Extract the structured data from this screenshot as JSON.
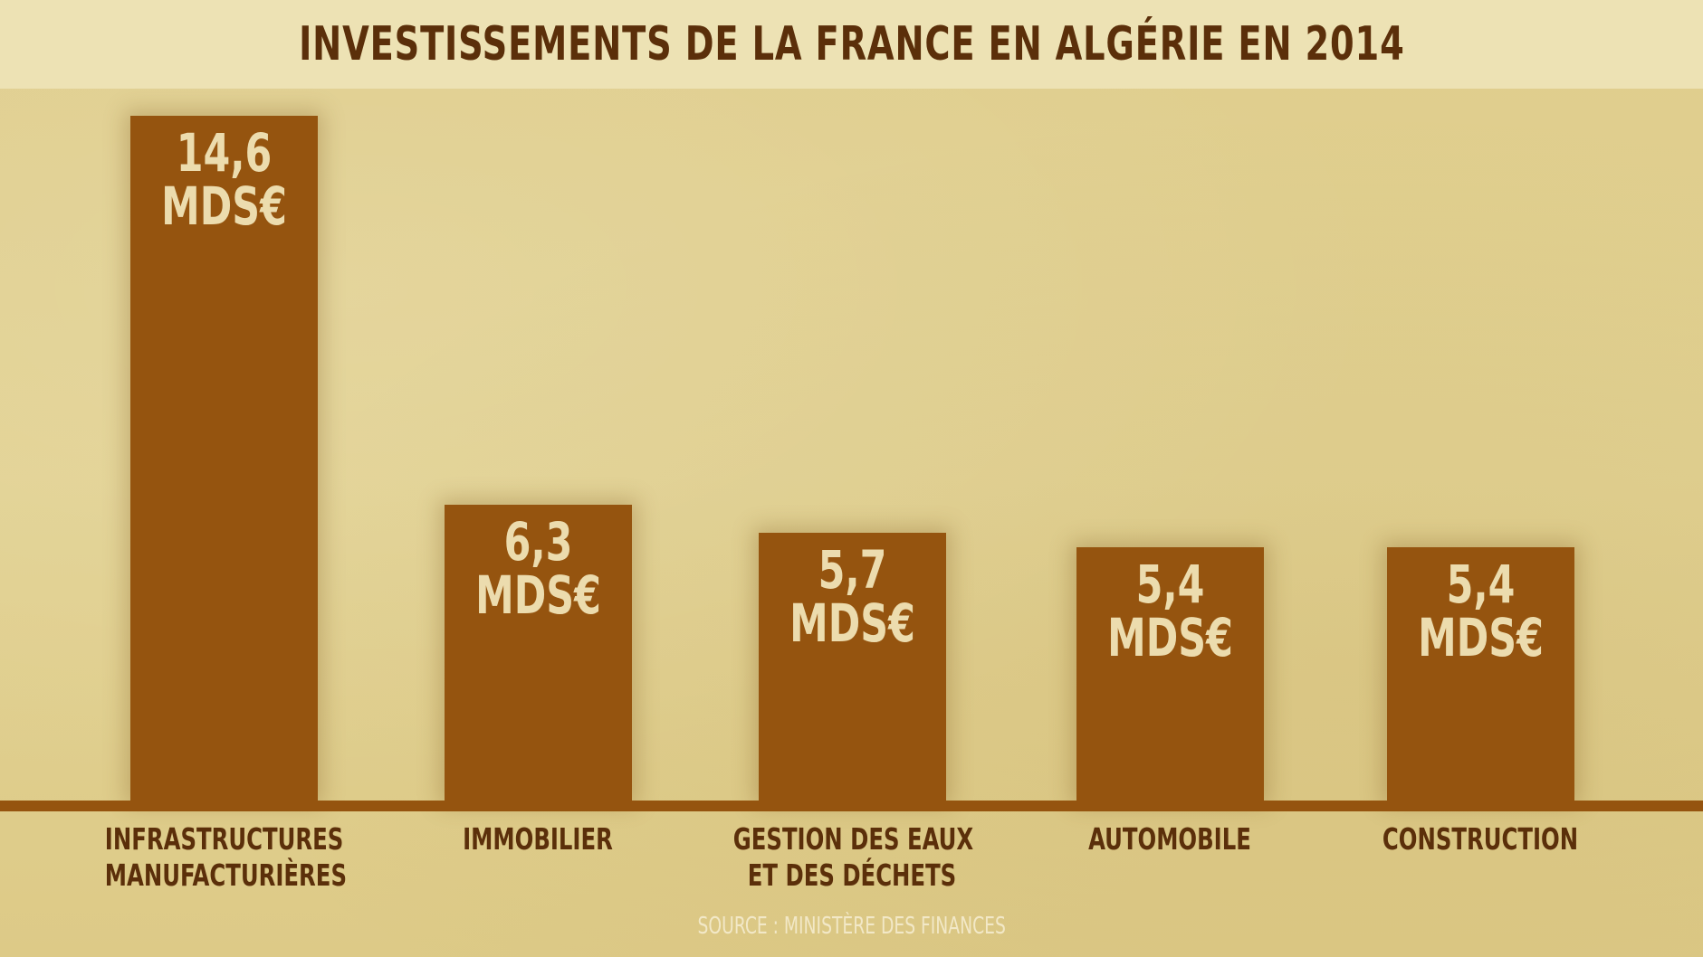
{
  "header": {
    "title": "INVESTISSEMENTS DE LA FRANCE EN ALGÉRIE EN 2014"
  },
  "footer": {
    "source": "SOURCE : MINISTÈRE DES FINANCES"
  },
  "colors": {
    "bar": "#95540f",
    "title": "#5b2f0a",
    "label": "#ecdcae",
    "background": "#e2d08f"
  },
  "chart_data": {
    "type": "bar",
    "title": "INVESTISSEMENTS DE LA FRANCE EN ALGÉRIE EN 2014",
    "categories": [
      [
        "INFRASTRUCTURES",
        "MANUFACTURIÈRES"
      ],
      [
        "IMMOBILIER"
      ],
      [
        "GESTION DES EAUX",
        "ET DES DÉCHETS"
      ],
      [
        "AUTOMOBILE"
      ],
      [
        "CONSTRUCTION"
      ]
    ],
    "values": [
      14.6,
      6.3,
      5.7,
      5.4,
      5.4
    ],
    "value_labels": [
      [
        "14,6",
        "MDS€"
      ],
      [
        "6,3",
        "MDS€"
      ],
      [
        "5,7",
        "MDS€"
      ],
      [
        "5,4",
        "MDS€"
      ],
      [
        "5,4",
        "MDS€"
      ]
    ],
    "ylim": [
      0,
      14.6
    ],
    "grid": false,
    "legend": "none"
  }
}
